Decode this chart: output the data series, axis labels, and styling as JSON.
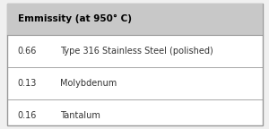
{
  "header": "Emmissity (at 950° C)",
  "rows": [
    {
      "value": "0.66",
      "label": "Type 316 Stainless Steel (polished)"
    },
    {
      "value": "0.13",
      "label": "Molybdenum"
    },
    {
      "value": "0.16",
      "label": "Tantalum"
    }
  ],
  "header_bg": "#c8c8c8",
  "row_bg": "#ffffff",
  "outer_bg": "#f0f0f0",
  "border_color": "#999999",
  "header_fontsize": 7.5,
  "row_fontsize": 7.0,
  "header_text_color": "#000000",
  "row_text_color": "#333333",
  "fig_w": 3.0,
  "fig_h": 1.44,
  "dpi": 100
}
